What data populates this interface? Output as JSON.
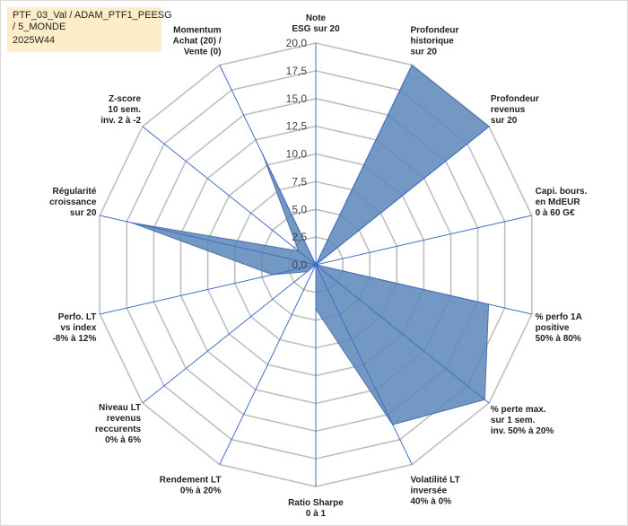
{
  "header": {
    "lines": [
      "PTF_03_Val / ADAM_PTF1_PEESG",
      " / 5_MONDE",
      "2025W44"
    ]
  },
  "colors": {
    "fill": "#5b86b8",
    "stroke": "#4a73a8",
    "axis": "#3f6fc6",
    "grid": "#bfbfbf",
    "title_bg": "#fdeec9"
  },
  "chart_data": {
    "type": "radar",
    "title": "",
    "rmin": 0,
    "rmax": 20,
    "ticks": [
      "0,0",
      "2,5",
      "5,0",
      "7,5",
      "10,0",
      "12,5",
      "15,0",
      "17,5",
      "20,0"
    ],
    "tick_values": [
      0,
      2.5,
      5,
      7.5,
      10,
      12.5,
      15,
      17.5,
      20
    ],
    "grid": true,
    "categories": [
      [
        "Note",
        "ESG sur 20"
      ],
      [
        "Profondeur",
        "historique",
        "sur 20"
      ],
      [
        "Profondeur",
        "revenus",
        "sur 20"
      ],
      [
        "Capi. bours.",
        "en MdEUR",
        "0 à 60 G€"
      ],
      [
        "% perfo 1A",
        "positive",
        "50% à 80%"
      ],
      [
        "% perte max.",
        "sur 1 sem.",
        "inv. 50% à 20%"
      ],
      [
        "Volatilité LT",
        "inversée",
        "40% à 0%"
      ],
      [
        "Ratio Sharpe",
        "0 à 1"
      ],
      [
        "Rendement LT",
        "0% à 20%"
      ],
      [
        "Niveau LT",
        "revenus",
        "reccurents",
        "0% à 6%"
      ],
      [
        "Perfo. LT",
        "vs index",
        "-8% à 12%"
      ],
      [
        "Régularité",
        "croissance",
        "sur 20"
      ],
      [
        "Z-score",
        "10 sem.",
        "inv. 2 à -2"
      ],
      [
        "Momentum",
        "Achat (20) /",
        "Vente (0)"
      ]
    ],
    "series": [
      {
        "values": [
          0.0,
          20.0,
          20.0,
          0.0,
          16.0,
          19.5,
          16.0,
          4.0,
          0.0,
          1.0,
          4.0,
          17.0,
          2.0,
          11.0
        ]
      }
    ]
  }
}
